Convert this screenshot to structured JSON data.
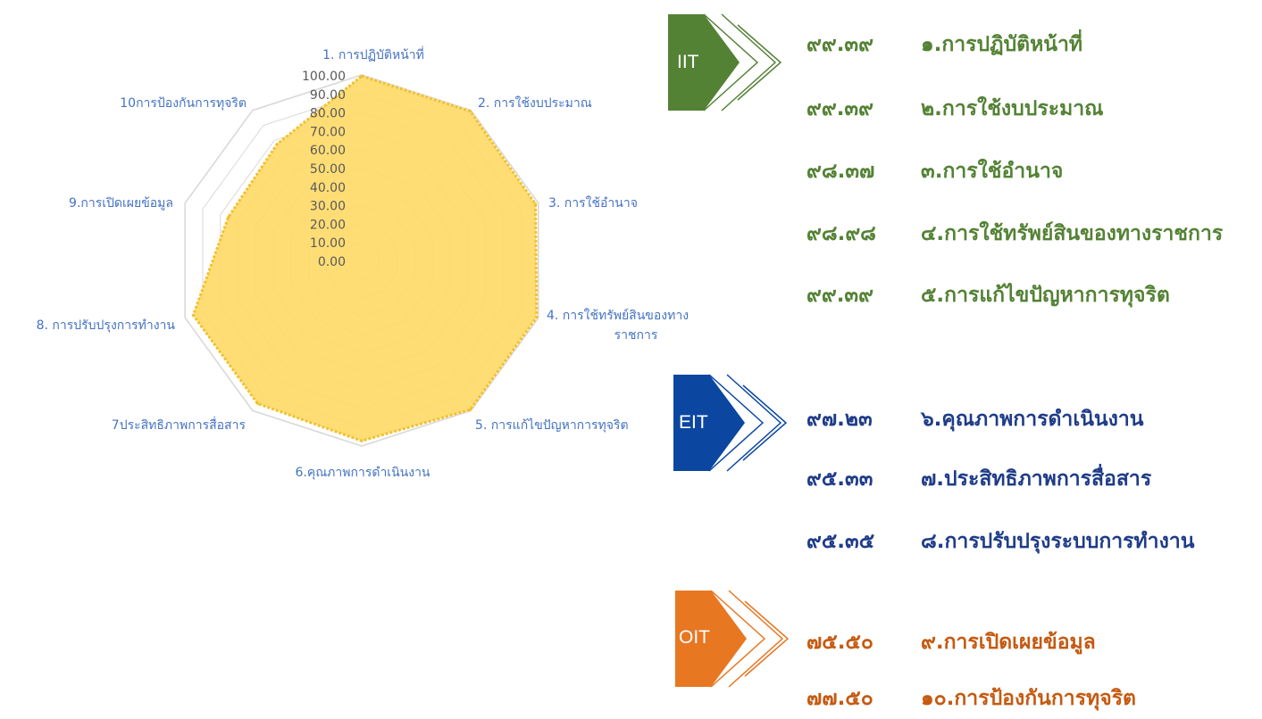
{
  "chart_data": {
    "type": "radar",
    "categories": [
      "1. การปฏิบัติหน้าที่",
      "2. การใช้งบประมาณ",
      "3. การใช้อำนาจ",
      "4. การใช้ทรัพย์สินของทาง ราชการ",
      "5. การแก้ไขปัญหาการทุจริต",
      "6.คุณภาพการดำเนินงาน",
      "7ประสิทธิภาพการสื่อสาร",
      "8. การปรับปรุงการทำงาน",
      "9.การเปิดเผยข้อมูล",
      "10การป้องกันการทุจริต"
    ],
    "values": [
      99.39,
      99.39,
      98.37,
      98.98,
      99.39,
      97.23,
      95.33,
      95.35,
      75.5,
      77.5
    ],
    "rlim": [
      0,
      100
    ],
    "ticks": [
      "0.00",
      "10.00",
      "20.00",
      "30.00",
      "40.00",
      "50.00",
      "60.00",
      "70.00",
      "80.00",
      "90.00",
      "100.00"
    ],
    "fill_color": "#ffd966",
    "line_color": "#f2c12e",
    "grid_color": "#d9d9d9",
    "label_color": "#4472c4"
  },
  "groups": [
    {
      "label": "IIT",
      "color": "#548235",
      "items": [
        {
          "value": "๙๙.๓๙",
          "label": "๑.การปฏิบัติหน้าที่"
        },
        {
          "value": "๙๙.๓๙",
          "label": "๒.การใช้งบประมาณ"
        },
        {
          "value": "๙๘.๓๗",
          "label": "๓.การใช้อำนาจ"
        },
        {
          "value": "๙๘.๙๘",
          "label": "๔.การใช้ทรัพย์สินของทางราชการ"
        },
        {
          "value": "๙๙.๓๙",
          "label": "๕.การแก้ไขปัญหาการทุจริต"
        }
      ]
    },
    {
      "label": "EIT",
      "color": "#1f3c88",
      "badge_color": "#0b47a1",
      "items": [
        {
          "value": "๙๗.๒๓",
          "label": "๖.คุณภาพการดำเนินงาน"
        },
        {
          "value": "๙๕.๓๓",
          "label": "๗.ประสิทธิภาพการสื่อสาร"
        },
        {
          "value": "๙๕.๓๕",
          "label": "๘.การปรับปรุงระบบการทำงาน"
        }
      ]
    },
    {
      "label": "OIT",
      "color": "#c55a11",
      "badge_color": "#e87722",
      "items": [
        {
          "value": "๗๕.๕๐",
          "label": "๙.การเปิดเผยข้อมูล"
        },
        {
          "value": "๗๗.๕๐",
          "label": "๑๐.การป้องกันการทุจริต"
        }
      ]
    }
  ]
}
